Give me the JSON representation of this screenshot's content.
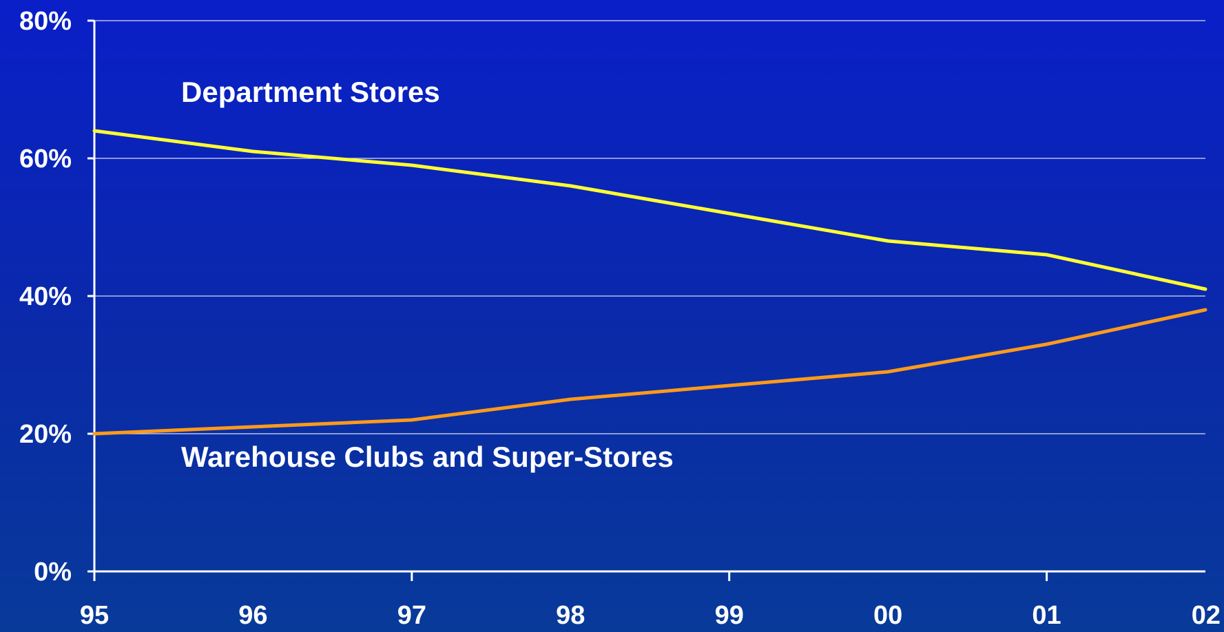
{
  "chart_data": {
    "type": "line",
    "categories": [
      "95",
      "96",
      "97",
      "98",
      "99",
      "00",
      "01",
      "02"
    ],
    "ylim": [
      0,
      80
    ],
    "yticks": [
      "0%",
      "20%",
      "40%",
      "60%",
      "80%"
    ],
    "ytick_values": [
      0,
      20,
      40,
      60,
      80
    ],
    "grid": "horizontal",
    "series": [
      {
        "name": "Department Stores",
        "color": "#ffff33",
        "values": [
          64,
          61,
          59,
          56,
          52,
          48,
          46,
          41
        ]
      },
      {
        "name": "Warehouse Clubs and Super-Stores",
        "color": "#ff9a1a",
        "values": [
          20,
          21,
          22,
          25,
          27,
          29,
          33,
          38
        ]
      }
    ]
  }
}
